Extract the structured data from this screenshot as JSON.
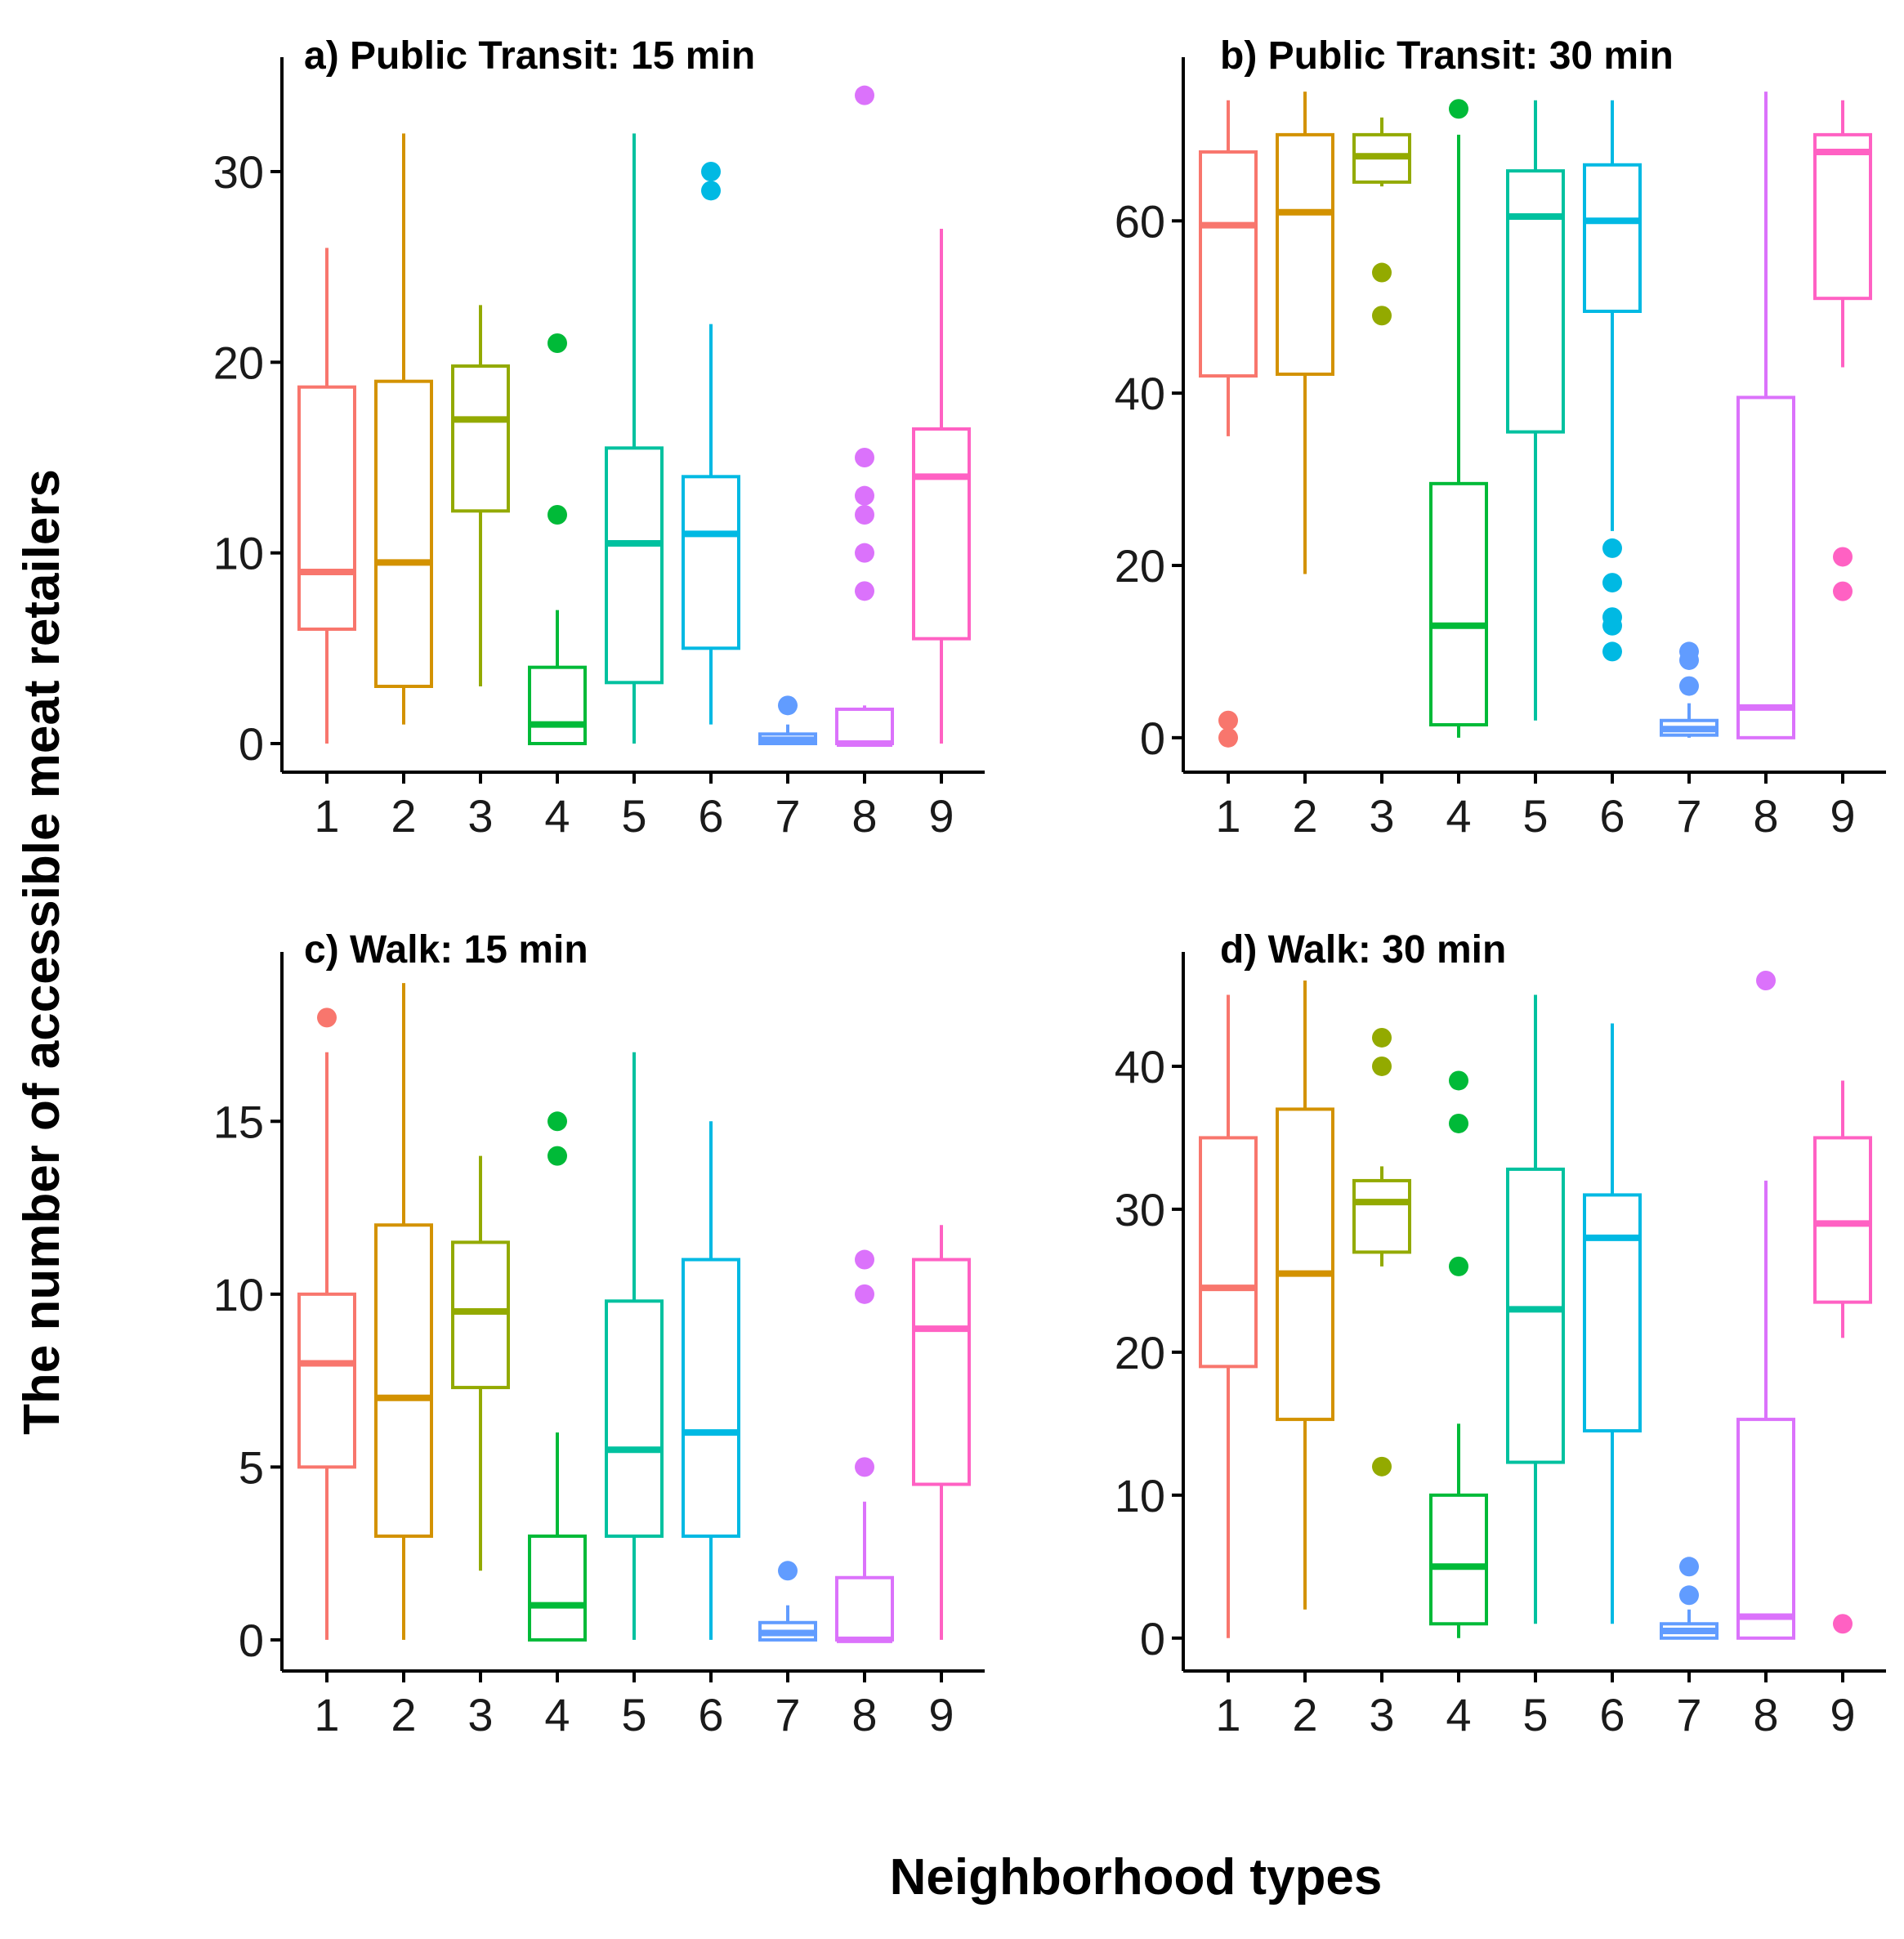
{
  "figure": {
    "ylabel": "The number of accessible meat retailers",
    "xlabel": "Neighborhood types"
  },
  "colors": {
    "1": "#F8766D",
    "2": "#D39200",
    "3": "#93AA00",
    "4": "#00BA38",
    "5": "#00C19F",
    "6": "#00B9E3",
    "7": "#619CFF",
    "8": "#DB72FB",
    "9": "#FF61C3"
  },
  "chart_data": [
    {
      "id": "a",
      "type": "boxplot",
      "title": "a) Public Transit: 15 min",
      "xlabel": "Neighborhood types",
      "ylabel": "The number of accessible meat retailers",
      "categories": [
        "1",
        "2",
        "3",
        "4",
        "5",
        "6",
        "7",
        "8",
        "9"
      ],
      "ylim": [
        -1.5,
        36
      ],
      "yticks": [
        0,
        10,
        20,
        30
      ],
      "boxes": [
        {
          "category": "1",
          "lower_whisker": 0,
          "q1": 6,
          "median": 9,
          "q3": 18.7,
          "upper_whisker": 26,
          "outliers": []
        },
        {
          "category": "2",
          "lower_whisker": 1,
          "q1": 3,
          "median": 9.5,
          "q3": 19,
          "upper_whisker": 32,
          "outliers": []
        },
        {
          "category": "3",
          "lower_whisker": 3,
          "q1": 12.2,
          "median": 17,
          "q3": 19.8,
          "upper_whisker": 23,
          "outliers": []
        },
        {
          "category": "4",
          "lower_whisker": 0,
          "q1": 0,
          "median": 1,
          "q3": 4,
          "upper_whisker": 7,
          "outliers": [
            12,
            21
          ]
        },
        {
          "category": "5",
          "lower_whisker": 0,
          "q1": 3.2,
          "median": 10.5,
          "q3": 15.5,
          "upper_whisker": 32,
          "outliers": []
        },
        {
          "category": "6",
          "lower_whisker": 1,
          "q1": 5,
          "median": 11,
          "q3": 14,
          "upper_whisker": 22,
          "outliers": [
            29,
            30
          ]
        },
        {
          "category": "7",
          "lower_whisker": 0,
          "q1": 0,
          "median": 0.2,
          "q3": 0.5,
          "upper_whisker": 1,
          "outliers": [
            2
          ]
        },
        {
          "category": "8",
          "lower_whisker": 0,
          "q1": 0,
          "median": 0,
          "q3": 1.8,
          "upper_whisker": 2,
          "outliers": [
            8,
            10,
            12,
            13,
            15,
            34
          ]
        },
        {
          "category": "9",
          "lower_whisker": 0,
          "q1": 5.5,
          "median": 14,
          "q3": 16.5,
          "upper_whisker": 27,
          "outliers": []
        }
      ]
    },
    {
      "id": "b",
      "type": "boxplot",
      "title": "b) Public Transit: 30 min",
      "xlabel": "Neighborhood types",
      "ylabel": "The number of accessible meat retailers",
      "categories": [
        "1",
        "2",
        "3",
        "4",
        "5",
        "6",
        "7",
        "8",
        "9"
      ],
      "ylim": [
        -4,
        79
      ],
      "yticks": [
        0,
        20,
        40,
        60
      ],
      "boxes": [
        {
          "category": "1",
          "lower_whisker": 35,
          "q1": 42,
          "median": 59.5,
          "q3": 68,
          "upper_whisker": 74,
          "outliers": [
            0,
            2
          ]
        },
        {
          "category": "2",
          "lower_whisker": 19,
          "q1": 42.2,
          "median": 61,
          "q3": 70,
          "upper_whisker": 75,
          "outliers": []
        },
        {
          "category": "3",
          "lower_whisker": 64,
          "q1": 64.5,
          "median": 67.5,
          "q3": 70,
          "upper_whisker": 72,
          "outliers": [
            49,
            54
          ]
        },
        {
          "category": "4",
          "lower_whisker": 0,
          "q1": 1.5,
          "median": 13,
          "q3": 29.5,
          "upper_whisker": 70,
          "outliers": [
            73
          ]
        },
        {
          "category": "5",
          "lower_whisker": 2,
          "q1": 35.5,
          "median": 60.5,
          "q3": 65.8,
          "upper_whisker": 74,
          "outliers": []
        },
        {
          "category": "6",
          "lower_whisker": 24,
          "q1": 49.5,
          "median": 60,
          "q3": 66.5,
          "upper_whisker": 74,
          "outliers": [
            10,
            13,
            14,
            18,
            22
          ]
        },
        {
          "category": "7",
          "lower_whisker": 0,
          "q1": 0.3,
          "median": 1,
          "q3": 2,
          "upper_whisker": 4,
          "outliers": [
            6,
            9,
            10
          ]
        },
        {
          "category": "8",
          "lower_whisker": 0,
          "q1": 0,
          "median": 3.5,
          "q3": 39.5,
          "upper_whisker": 75,
          "outliers": []
        },
        {
          "category": "9",
          "lower_whisker": 43,
          "q1": 51,
          "median": 68,
          "q3": 70,
          "upper_whisker": 74,
          "outliers": [
            17,
            21
          ]
        }
      ]
    },
    {
      "id": "c",
      "type": "boxplot",
      "title": "c) Walk: 15 min",
      "xlabel": "Neighborhood types",
      "ylabel": "The number of accessible meat retailers",
      "categories": [
        "1",
        "2",
        "3",
        "4",
        "5",
        "6",
        "7",
        "8",
        "9"
      ],
      "ylim": [
        -0.9,
        19.9
      ],
      "yticks": [
        0,
        5,
        10,
        15
      ],
      "boxes": [
        {
          "category": "1",
          "lower_whisker": 0,
          "q1": 5,
          "median": 8,
          "q3": 10,
          "upper_whisker": 17,
          "outliers": [
            18
          ]
        },
        {
          "category": "2",
          "lower_whisker": 0,
          "q1": 3,
          "median": 7,
          "q3": 12,
          "upper_whisker": 19,
          "outliers": []
        },
        {
          "category": "3",
          "lower_whisker": 2,
          "q1": 7.3,
          "median": 9.5,
          "q3": 11.5,
          "upper_whisker": 14,
          "outliers": []
        },
        {
          "category": "4",
          "lower_whisker": 0,
          "q1": 0,
          "median": 1,
          "q3": 3,
          "upper_whisker": 6,
          "outliers": [
            14,
            15
          ]
        },
        {
          "category": "5",
          "lower_whisker": 0,
          "q1": 3,
          "median": 5.5,
          "q3": 9.8,
          "upper_whisker": 17,
          "outliers": []
        },
        {
          "category": "6",
          "lower_whisker": 0,
          "q1": 3,
          "median": 6,
          "q3": 11,
          "upper_whisker": 15,
          "outliers": []
        },
        {
          "category": "7",
          "lower_whisker": 0,
          "q1": 0,
          "median": 0.2,
          "q3": 0.5,
          "upper_whisker": 1,
          "outliers": [
            2
          ]
        },
        {
          "category": "8",
          "lower_whisker": 0,
          "q1": 0,
          "median": 0,
          "q3": 1.8,
          "upper_whisker": 4,
          "outliers": [
            5,
            10,
            11
          ]
        },
        {
          "category": "9",
          "lower_whisker": 0,
          "q1": 4.5,
          "median": 9,
          "q3": 11,
          "upper_whisker": 12,
          "outliers": []
        }
      ]
    },
    {
      "id": "d",
      "type": "boxplot",
      "title": "d) Walk: 30 min",
      "xlabel": "Neighborhood types",
      "ylabel": "The number of accessible meat retailers",
      "categories": [
        "1",
        "2",
        "3",
        "4",
        "5",
        "6",
        "7",
        "8",
        "9"
      ],
      "ylim": [
        -2.3,
        48
      ],
      "yticks": [
        0,
        10,
        20,
        30,
        40
      ],
      "boxes": [
        {
          "category": "1",
          "lower_whisker": 0,
          "q1": 19,
          "median": 24.5,
          "q3": 35,
          "upper_whisker": 45,
          "outliers": []
        },
        {
          "category": "2",
          "lower_whisker": 2,
          "q1": 15.3,
          "median": 25.5,
          "q3": 37,
          "upper_whisker": 46,
          "outliers": []
        },
        {
          "category": "3",
          "lower_whisker": 26,
          "q1": 27,
          "median": 30.5,
          "q3": 32,
          "upper_whisker": 33,
          "outliers": [
            12,
            40,
            42
          ]
        },
        {
          "category": "4",
          "lower_whisker": 0,
          "q1": 1,
          "median": 5,
          "q3": 10,
          "upper_whisker": 15,
          "outliers": [
            26,
            36,
            39
          ]
        },
        {
          "category": "5",
          "lower_whisker": 1,
          "q1": 12.3,
          "median": 23,
          "q3": 32.8,
          "upper_whisker": 45,
          "outliers": []
        },
        {
          "category": "6",
          "lower_whisker": 1,
          "q1": 14.5,
          "median": 28,
          "q3": 31,
          "upper_whisker": 43,
          "outliers": []
        },
        {
          "category": "7",
          "lower_whisker": 0,
          "q1": 0,
          "median": 0.5,
          "q3": 1,
          "upper_whisker": 2,
          "outliers": [
            3,
            5
          ]
        },
        {
          "category": "8",
          "lower_whisker": 0,
          "q1": 0,
          "median": 1.5,
          "q3": 15.3,
          "upper_whisker": 32,
          "outliers": [
            46
          ]
        },
        {
          "category": "9",
          "lower_whisker": 21,
          "q1": 23.5,
          "median": 29,
          "q3": 35,
          "upper_whisker": 39,
          "outliers": [
            1
          ]
        }
      ]
    }
  ]
}
